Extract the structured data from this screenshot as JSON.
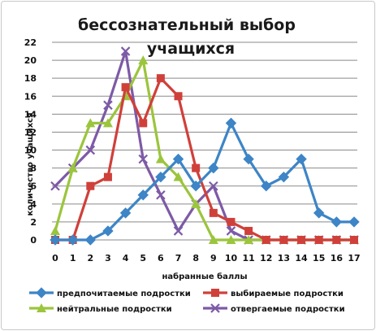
{
  "chart_data": {
    "type": "line",
    "title_line1": "бессознательный выбор",
    "title_line2": "учащихся",
    "xlabel": "набранные баллы",
    "ylabel": "количество учащихся",
    "x": [
      0,
      1,
      2,
      3,
      4,
      5,
      6,
      7,
      8,
      9,
      10,
      11,
      12,
      13,
      14,
      15,
      16,
      17
    ],
    "ylim": [
      0,
      22
    ],
    "yticks": [
      0,
      2,
      4,
      6,
      8,
      10,
      12,
      14,
      16,
      18,
      20,
      22
    ],
    "grid": true,
    "legend_position": "bottom",
    "series": [
      {
        "name": "предпочитаемые подростки",
        "color": "#3d85c6",
        "marker": "diamond",
        "values": [
          0,
          0,
          0,
          1,
          3,
          5,
          7,
          9,
          6,
          8,
          13,
          9,
          6,
          7,
          9,
          3,
          2,
          2
        ]
      },
      {
        "name": "выбираемые подростки",
        "color": "#d0403a",
        "marker": "square",
        "values": [
          0,
          0,
          6,
          7,
          17,
          13,
          18,
          16,
          8,
          3,
          2,
          1,
          0,
          0,
          0,
          0,
          0,
          0
        ]
      },
      {
        "name": "нейтральные подростки",
        "color": "#9bc53d",
        "marker": "triangle",
        "values": [
          1,
          8,
          13,
          13,
          16,
          20,
          9,
          7,
          4,
          0,
          0,
          0,
          0,
          0,
          0,
          0,
          0,
          0
        ]
      },
      {
        "name": "отвергаемые подростки",
        "color": "#7d5aa6",
        "marker": "x",
        "values": [
          6,
          8,
          10,
          15,
          21,
          9,
          5,
          1,
          4,
          6,
          1,
          0,
          0,
          0,
          0,
          0,
          0,
          0
        ]
      }
    ]
  }
}
